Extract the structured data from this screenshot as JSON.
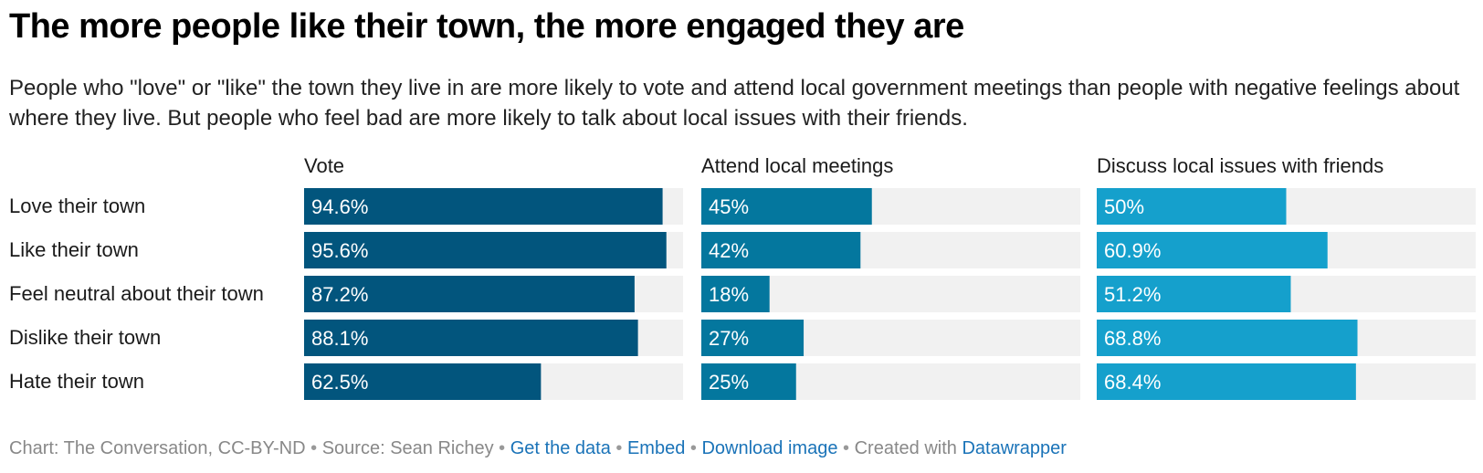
{
  "header": {
    "title": "The more people like their town, the more engaged they are",
    "subtitle": "People who \"love\" or \"like\" the town they live in are more likely to vote and attend local government meetings than people with negative feelings about where they live. But people who feel bad are more likely to talk about local issues with their friends."
  },
  "chart_data": {
    "type": "bar",
    "orientation": "horizontal",
    "layout": "small-multiples",
    "categories": [
      "Love their town",
      "Like their town",
      "Feel neutral about their town",
      "Dislike their town",
      "Hate their town"
    ],
    "xlim": [
      0,
      100
    ],
    "series": [
      {
        "name": "Vote",
        "color": "#02557d",
        "values": [
          94.6,
          95.6,
          87.2,
          88.1,
          62.5
        ],
        "labels": [
          "94.6%",
          "95.6%",
          "87.2%",
          "88.1%",
          "62.5%"
        ]
      },
      {
        "name": "Attend local meetings",
        "color": "#04779e",
        "values": [
          45,
          42,
          18,
          27,
          25
        ],
        "labels": [
          "45%",
          "42%",
          "18%",
          "27%",
          "25%"
        ]
      },
      {
        "name": "Discuss local issues with friends",
        "color": "#15a0cc",
        "values": [
          50,
          60.9,
          51.2,
          68.8,
          68.4
        ],
        "labels": [
          "50%",
          "60.9%",
          "51.2%",
          "68.8%",
          "68.4%"
        ]
      }
    ],
    "background_bar_color": "#f1f1f1"
  },
  "footer": {
    "credit": "Chart: The Conversation, CC-BY-ND",
    "source": "Source: Sean Richey",
    "get_data": "Get the data",
    "embed": "Embed",
    "download": "Download image",
    "created_with": "Created with",
    "datawrapper": "Datawrapper",
    "separator": "•"
  }
}
